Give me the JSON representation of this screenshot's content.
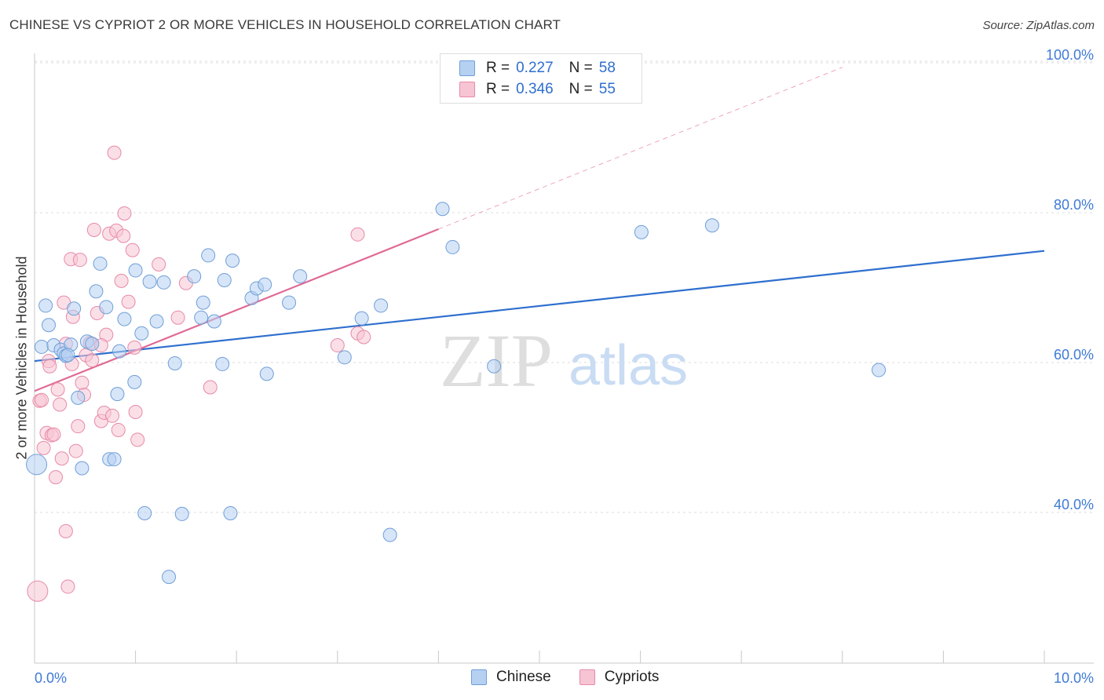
{
  "title": "CHINESE VS CYPRIOT 2 OR MORE VEHICLES IN HOUSEHOLD CORRELATION CHART",
  "source": "Source: ZipAtlas.com",
  "watermark": {
    "zip": "ZIP",
    "atlas": "atlas"
  },
  "legend": {
    "rows": [
      {
        "r_label": "R =",
        "r_value": "0.227",
        "n_label": "N =",
        "n_value": "58"
      },
      {
        "r_label": "R =",
        "r_value": "0.346",
        "n_label": "N =",
        "n_value": "55"
      }
    ]
  },
  "bottom_legend": {
    "chinese": "Chinese",
    "cypriots": "Cypriots"
  },
  "colors": {
    "chinese_fill": "#b6d0f2",
    "chinese_stroke": "#6f9fd8",
    "chinese_line": "#2e6fce",
    "cypriot_fill": "#f7c4d4",
    "cypriot_stroke": "#e78aa8",
    "cypriot_line": "#e06a95",
    "axis_text": "#3f7ad6"
  },
  "chart_data": {
    "type": "scatter",
    "title": "CHINESE VS CYPRIOT 2 OR MORE VEHICLES IN HOUSEHOLD CORRELATION CHART",
    "xlabel": "",
    "ylabel": "2 or more Vehicles in Household",
    "xlim": [
      0,
      10
    ],
    "ylim": [
      20,
      102
    ],
    "x_tick_labels": [
      "0.0%",
      "10.0%"
    ],
    "y_ticks": [
      40,
      60,
      80,
      100
    ],
    "y_tick_labels": [
      "40.0%",
      "60.0%",
      "80.0%",
      "100.0%"
    ],
    "series": [
      {
        "name": "Chinese",
        "R": 0.227,
        "N": 58,
        "trend": {
          "x": [
            0.0,
            10.0
          ],
          "y": [
            60.2,
            74.9
          ]
        },
        "points": [
          [
            0.02,
            46.4,
            "big"
          ],
          [
            0.07,
            62.1
          ],
          [
            0.11,
            67.6
          ],
          [
            0.14,
            65.0
          ],
          [
            0.19,
            62.3
          ],
          [
            0.26,
            61.7
          ],
          [
            0.29,
            61.2
          ],
          [
            0.31,
            60.9
          ],
          [
            0.36,
            62.4
          ],
          [
            0.39,
            67.2
          ],
          [
            0.43,
            55.3
          ],
          [
            0.47,
            45.9
          ],
          [
            0.52,
            62.8
          ],
          [
            0.57,
            62.5
          ],
          [
            0.61,
            69.5
          ],
          [
            0.65,
            73.2
          ],
          [
            0.71,
            67.4
          ],
          [
            0.74,
            47.1
          ],
          [
            0.79,
            47.1
          ],
          [
            0.82,
            55.8
          ],
          [
            0.84,
            61.5
          ],
          [
            0.89,
            65.8
          ],
          [
            0.99,
            57.4
          ],
          [
            1.0,
            72.3
          ],
          [
            1.06,
            63.9
          ],
          [
            1.09,
            39.9
          ],
          [
            1.14,
            70.8
          ],
          [
            1.21,
            65.5
          ],
          [
            1.28,
            70.7
          ],
          [
            1.33,
            31.4
          ],
          [
            1.39,
            59.9
          ],
          [
            1.46,
            39.8
          ],
          [
            1.58,
            71.5
          ],
          [
            1.65,
            66.0
          ],
          [
            1.67,
            68.0
          ],
          [
            1.72,
            74.3
          ],
          [
            1.78,
            65.5
          ],
          [
            1.86,
            59.8
          ],
          [
            1.88,
            71.0
          ],
          [
            1.94,
            39.9
          ],
          [
            1.96,
            73.6
          ],
          [
            2.15,
            68.6
          ],
          [
            2.2,
            69.9
          ],
          [
            2.28,
            70.4
          ],
          [
            2.3,
            58.5
          ],
          [
            2.52,
            68.0
          ],
          [
            2.63,
            71.5
          ],
          [
            3.07,
            60.7
          ],
          [
            3.24,
            65.9
          ],
          [
            3.43,
            67.6
          ],
          [
            3.52,
            37.0
          ],
          [
            4.04,
            80.5
          ],
          [
            4.14,
            75.4
          ],
          [
            4.55,
            59.5
          ],
          [
            6.01,
            77.4
          ],
          [
            6.71,
            78.3
          ],
          [
            8.36,
            59.0
          ],
          [
            0.33,
            61.0
          ]
        ]
      },
      {
        "name": "Cypriots",
        "R": 0.346,
        "N": 55,
        "trend": {
          "x": [
            0.0,
            4.0
          ],
          "y": [
            56.2,
            77.8
          ]
        },
        "trend_dashed": {
          "x": [
            4.0,
            8.0
          ],
          "y": [
            77.8,
            99.4
          ]
        },
        "points": [
          [
            0.03,
            29.5,
            "big"
          ],
          [
            0.05,
            54.9
          ],
          [
            0.09,
            48.6
          ],
          [
            0.12,
            50.6
          ],
          [
            0.14,
            60.2
          ],
          [
            0.17,
            50.3
          ],
          [
            0.19,
            50.4
          ],
          [
            0.21,
            44.7
          ],
          [
            0.23,
            56.4
          ],
          [
            0.25,
            54.4
          ],
          [
            0.27,
            47.2
          ],
          [
            0.29,
            68.0
          ],
          [
            0.31,
            62.5
          ],
          [
            0.31,
            37.5
          ],
          [
            0.33,
            30.1
          ],
          [
            0.36,
            73.8
          ],
          [
            0.38,
            66.1
          ],
          [
            0.41,
            48.2
          ],
          [
            0.43,
            51.5
          ],
          [
            0.45,
            73.7
          ],
          [
            0.47,
            57.3
          ],
          [
            0.49,
            55.7
          ],
          [
            0.51,
            61.0
          ],
          [
            0.55,
            62.6
          ],
          [
            0.57,
            60.3
          ],
          [
            0.59,
            77.7
          ],
          [
            0.62,
            66.6
          ],
          [
            0.66,
            52.2
          ],
          [
            0.69,
            53.3
          ],
          [
            0.71,
            63.7
          ],
          [
            0.74,
            77.2
          ],
          [
            0.77,
            52.9
          ],
          [
            0.79,
            88.0
          ],
          [
            0.81,
            77.6
          ],
          [
            0.83,
            51.0
          ],
          [
            0.86,
            70.9
          ],
          [
            0.88,
            76.9
          ],
          [
            0.89,
            79.9
          ],
          [
            0.93,
            68.1
          ],
          [
            0.97,
            75.0
          ],
          [
            0.99,
            62.0
          ],
          [
            1.0,
            53.4
          ],
          [
            1.02,
            49.7
          ],
          [
            1.23,
            73.1
          ],
          [
            1.42,
            66.0
          ],
          [
            1.5,
            70.6
          ],
          [
            1.74,
            56.7
          ],
          [
            3.0,
            62.3
          ],
          [
            3.2,
            63.9
          ],
          [
            3.26,
            63.4
          ],
          [
            3.2,
            77.1
          ],
          [
            0.66,
            62.3
          ],
          [
            0.37,
            59.8
          ],
          [
            0.07,
            55.0
          ],
          [
            0.15,
            59.5
          ]
        ]
      }
    ]
  }
}
